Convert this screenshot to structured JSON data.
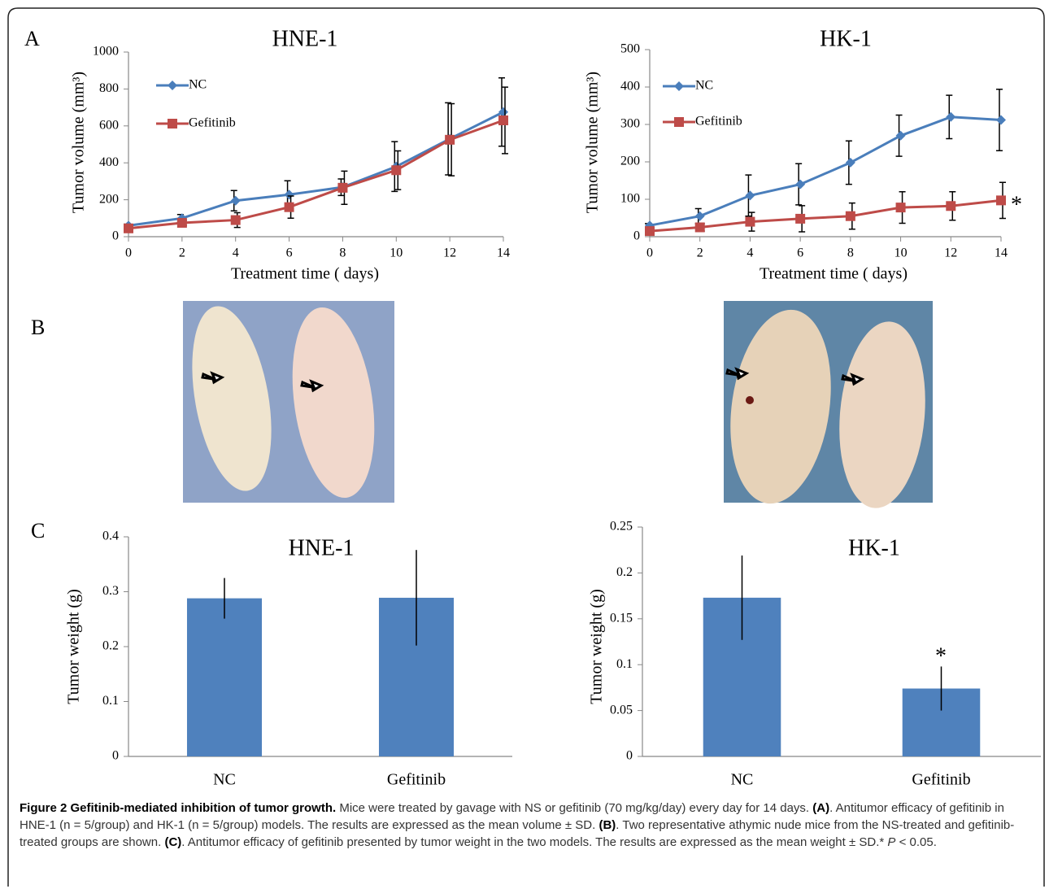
{
  "panels": [
    "A",
    "B",
    "C"
  ],
  "chart_data": [
    {
      "type": "line",
      "title": "HNE-1",
      "x_label": "Treatment  time ( days)",
      "y_label": "Tumor  volume  (mm³)",
      "x": [
        0,
        2,
        4,
        6,
        8,
        10,
        12,
        14
      ],
      "xlim": [
        0,
        14
      ],
      "xticks": [
        0,
        2,
        4,
        6,
        8,
        10,
        12,
        14
      ],
      "ylim": [
        0,
        1000
      ],
      "yticks": [
        0,
        200,
        400,
        600,
        800,
        1000
      ],
      "legend": "upper left",
      "series": [
        {
          "name": "NC",
          "color": "#4a7ebb",
          "marker": "diamond",
          "values": [
            60,
            100,
            195,
            228,
            268,
            380,
            530,
            675
          ],
          "errors": [
            8,
            20,
            55,
            75,
            45,
            135,
            195,
            185
          ]
        },
        {
          "name": "Gefitinib",
          "color": "#be4b48",
          "marker": "square",
          "values": [
            45,
            75,
            90,
            160,
            265,
            360,
            525,
            630
          ],
          "errors": [
            10,
            15,
            40,
            60,
            90,
            105,
            195,
            180
          ]
        }
      ]
    },
    {
      "type": "line",
      "title": "HK-1",
      "x_label": "Treatment   time ( days)",
      "y_label": "Tumor  volume  (mm³)",
      "x": [
        0,
        2,
        4,
        6,
        8,
        10,
        12,
        14
      ],
      "xlim": [
        0,
        14
      ],
      "xticks": [
        0,
        2,
        4,
        6,
        8,
        10,
        12,
        14
      ],
      "ylim": [
        0,
        500
      ],
      "yticks": [
        0,
        100,
        200,
        300,
        400,
        500
      ],
      "legend": "upper left",
      "annotation": "*",
      "series": [
        {
          "name": "NC",
          "color": "#4a7ebb",
          "marker": "diamond",
          "values": [
            30,
            55,
            110,
            140,
            198,
            270,
            320,
            312
          ],
          "errors": [
            5,
            20,
            55,
            55,
            58,
            55,
            58,
            82
          ]
        },
        {
          "name": "Gefitinib",
          "color": "#be4b48",
          "marker": "square",
          "values": [
            15,
            25,
            40,
            48,
            55,
            78,
            82,
            97
          ],
          "errors": [
            5,
            10,
            25,
            35,
            35,
            42,
            38,
            48
          ]
        }
      ]
    },
    {
      "type": "bar",
      "title": "HNE-1",
      "y_label": "Tumor   weight  (g)",
      "categories": [
        "NC",
        "Gefitinib"
      ],
      "values": [
        0.288,
        0.289
      ],
      "errors": [
        0.037,
        0.087
      ],
      "color": "#4f81bd",
      "ylim": [
        0,
        0.4
      ],
      "yticks": [
        0,
        0.1,
        0.2,
        0.3,
        0.4
      ]
    },
    {
      "type": "bar",
      "title": "HK-1",
      "y_label": "Tumor    weight    (g)",
      "categories": [
        "NC",
        "Gefitinib"
      ],
      "values": [
        0.173,
        0.074
      ],
      "errors": [
        0.046,
        0.024
      ],
      "color": "#4f81bd",
      "ylim": [
        0,
        0.25
      ],
      "yticks": [
        0,
        0.05,
        0.1,
        0.15,
        0.2,
        0.25
      ],
      "annotation": "*"
    }
  ],
  "caption": [
    {
      "text": "Figure 2 Gefitinib-mediated inhibition of tumor growth.",
      "style": "bold"
    },
    {
      "text": " Mice were treated by gavage with NS or gefitinib (70 mg/kg/day) every day for 14 days. ",
      "style": "normal"
    },
    {
      "text": "(A)",
      "style": "bold"
    },
    {
      "text": ". Antitumor efficacy of gefitinib in HNE-1 (n = 5/group) and HK-1 (n = 5/group) models. The results are expressed as the mean volume ± SD. ",
      "style": "normal"
    },
    {
      "text": "(B)",
      "style": "bold"
    },
    {
      "text": ". Two representative athymic nude mice from the NS-treated and gefitinib-treated groups are shown. ",
      "style": "normal"
    },
    {
      "text": "(C)",
      "style": "bold"
    },
    {
      "text": ". Antitumor efficacy of gefitinib presented by tumor weight in the two models. The results are expressed as the mean weight ± SD.* ",
      "style": "normal"
    },
    {
      "text": "P",
      "style": "italic"
    },
    {
      "text": " < 0.05.",
      "style": "normal"
    }
  ]
}
